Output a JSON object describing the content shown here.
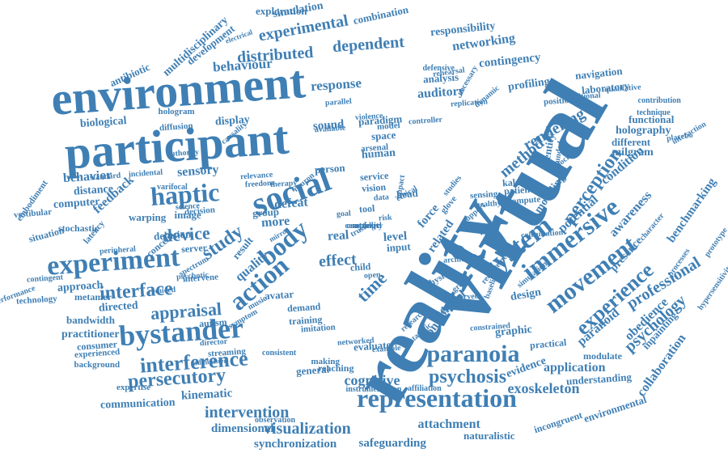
{
  "color": "#3f7fb4",
  "background": "#ffffff",
  "words": [
    {
      "t": "virtual"
    },
    {
      "t": "reality"
    },
    {
      "t": "environment"
    },
    {
      "t": "participant"
    },
    {
      "t": "social"
    },
    {
      "t": "experiment"
    },
    {
      "t": "bystander"
    },
    {
      "t": "representation"
    },
    {
      "t": "paranoia"
    },
    {
      "t": "system"
    },
    {
      "t": "immersive"
    },
    {
      "t": "movement"
    },
    {
      "t": "action"
    },
    {
      "t": "haptic"
    },
    {
      "t": "body"
    },
    {
      "t": "interference"
    },
    {
      "t": "psychosis"
    },
    {
      "t": "persecutory"
    },
    {
      "t": "experience"
    },
    {
      "t": "perception"
    },
    {
      "t": "interface"
    },
    {
      "t": "appraisal"
    },
    {
      "t": "device"
    },
    {
      "t": "study"
    },
    {
      "t": "time"
    },
    {
      "t": "intervention"
    },
    {
      "t": "visualization"
    },
    {
      "t": "psychology"
    },
    {
      "t": "professional"
    },
    {
      "t": "dependent"
    },
    {
      "t": "distributed"
    },
    {
      "t": "experimental"
    },
    {
      "t": "behaviour"
    },
    {
      "t": "response"
    },
    {
      "t": "rendering"
    },
    {
      "t": "method"
    },
    {
      "t": "cognitive"
    },
    {
      "t": "exoskeleton"
    },
    {
      "t": "dimensional"
    },
    {
      "t": "safeguarding"
    },
    {
      "t": "synchronization"
    },
    {
      "t": "kinematic"
    },
    {
      "t": "communication"
    },
    {
      "t": "attachment"
    },
    {
      "t": "application"
    },
    {
      "t": "collaboration"
    },
    {
      "t": "benchmarking"
    },
    {
      "t": "awareness"
    },
    {
      "t": "networking"
    },
    {
      "t": "contingency"
    },
    {
      "t": "responsibility"
    },
    {
      "t": "simulation"
    },
    {
      "t": "exploration"
    },
    {
      "t": "combination"
    },
    {
      "t": "multidisciplinary"
    },
    {
      "t": "development"
    },
    {
      "t": "antibiotic"
    },
    {
      "t": "biological"
    },
    {
      "t": "hologram"
    },
    {
      "t": "diffusion"
    },
    {
      "t": "display"
    },
    {
      "t": "sound"
    },
    {
      "t": "paradigm"
    },
    {
      "t": "auditory"
    },
    {
      "t": "profiling"
    },
    {
      "t": "navigation"
    },
    {
      "t": "laboratory"
    },
    {
      "t": "holography"
    },
    {
      "t": "milgram"
    },
    {
      "t": "different"
    },
    {
      "t": "functional"
    },
    {
      "t": "potential"
    },
    {
      "t": "modeling"
    },
    {
      "t": "condition"
    },
    {
      "t": "presence"
    },
    {
      "t": "obedience"
    },
    {
      "t": "paranoid"
    },
    {
      "t": "graphic"
    },
    {
      "t": "design"
    },
    {
      "t": "medical"
    },
    {
      "t": "control"
    },
    {
      "t": "evidence"
    },
    {
      "t": "understanding"
    },
    {
      "t": "environmental"
    },
    {
      "t": "naturalistic"
    },
    {
      "t": "incongruent"
    },
    {
      "t": "inpainting"
    },
    {
      "t": "modulate"
    },
    {
      "t": "practical"
    },
    {
      "t": "sensory"
    },
    {
      "t": "behavior"
    },
    {
      "t": "feedback"
    },
    {
      "t": "distance"
    },
    {
      "t": "computer"
    },
    {
      "t": "image"
    },
    {
      "t": "warping"
    },
    {
      "t": "delusion"
    },
    {
      "t": "concern"
    },
    {
      "t": "server"
    },
    {
      "t": "approach"
    },
    {
      "t": "directed"
    },
    {
      "t": "quality"
    },
    {
      "t": "more"
    },
    {
      "t": "group"
    },
    {
      "t": "defeat"
    },
    {
      "t": "person"
    },
    {
      "t": "real"
    },
    {
      "t": "effect"
    },
    {
      "t": "level"
    },
    {
      "t": "force"
    },
    {
      "t": "related"
    },
    {
      "t": "human"
    },
    {
      "t": "analysis"
    },
    {
      "t": "stochastic"
    },
    {
      "t": "situation"
    },
    {
      "t": "embodiment"
    },
    {
      "t": "vestibular"
    },
    {
      "t": "latency"
    },
    {
      "t": "technology"
    },
    {
      "t": "metamer"
    },
    {
      "t": "bandwidth"
    },
    {
      "t": "practitioner"
    },
    {
      "t": "consumer"
    },
    {
      "t": "experienced"
    },
    {
      "t": "background"
    },
    {
      "t": "expertise"
    },
    {
      "t": "streaming"
    },
    {
      "t": "autism"
    },
    {
      "t": "avatar"
    },
    {
      "t": "demand"
    },
    {
      "t": "training"
    },
    {
      "t": "imitation"
    },
    {
      "t": "evaluate"
    },
    {
      "t": "reaching"
    },
    {
      "t": "general"
    },
    {
      "t": "making"
    },
    {
      "t": "consistent"
    },
    {
      "t": "observation"
    },
    {
      "t": "instrumentation"
    },
    {
      "t": "affiliation"
    },
    {
      "t": "physic"
    },
    {
      "t": "child"
    },
    {
      "t": "open"
    },
    {
      "t": "input"
    },
    {
      "t": "result"
    },
    {
      "t": "intervene"
    },
    {
      "t": "decision"
    },
    {
      "t": "science"
    },
    {
      "t": "mirror"
    },
    {
      "t": "vision"
    },
    {
      "t": "head"
    },
    {
      "t": "glove"
    },
    {
      "t": "service"
    },
    {
      "t": "space"
    },
    {
      "t": "arsenal"
    },
    {
      "t": "model"
    },
    {
      "t": "violence"
    },
    {
      "t": "electrical"
    },
    {
      "t": "defensive"
    },
    {
      "t": "rehearsal"
    },
    {
      "t": "controller"
    },
    {
      "t": "patient"
    },
    {
      "t": "identity"
    },
    {
      "t": "compute"
    },
    {
      "t": "grounded"
    },
    {
      "t": "kalman"
    },
    {
      "t": "sensing"
    },
    {
      "t": "neuron"
    },
    {
      "t": "trust"
    },
    {
      "t": "tool"
    },
    {
      "t": "risk"
    },
    {
      "t": "data"
    },
    {
      "t": "goal"
    },
    {
      "t": "peripheral"
    },
    {
      "t": "contingent"
    },
    {
      "t": "performance"
    },
    {
      "t": "spectrum"
    },
    {
      "t": "psychotic"
    },
    {
      "t": "freedom"
    },
    {
      "t": "therapy"
    },
    {
      "t": "causality"
    },
    {
      "t": "position"
    },
    {
      "t": "qualitative"
    },
    {
      "t": "contribution"
    },
    {
      "t": "technique"
    },
    {
      "t": "processes"
    },
    {
      "t": "hypersensitivity"
    },
    {
      "t": "prototype"
    },
    {
      "t": "placebo"
    },
    {
      "t": "traditional"
    },
    {
      "t": "docking"
    },
    {
      "t": "dynamic"
    },
    {
      "t": "healthy"
    },
    {
      "t": "motion"
    },
    {
      "t": "ethical"
    },
    {
      "t": "studies"
    },
    {
      "t": "support"
    },
    {
      "t": "impact"
    },
    {
      "t": "music"
    },
    {
      "t": "symptom"
    },
    {
      "t": "director"
    },
    {
      "t": "administer"
    },
    {
      "t": "networked"
    },
    {
      "t": "example"
    },
    {
      "t": "standard"
    },
    {
      "t": "varifocal"
    },
    {
      "t": "authority"
    },
    {
      "t": "relevance"
    },
    {
      "t": "parallel"
    },
    {
      "t": "available"
    },
    {
      "t": "necessary"
    },
    {
      "t": "replication"
    },
    {
      "t": "constrained"
    },
    {
      "t": "interaction"
    },
    {
      "t": "character"
    },
    {
      "t": "consultation"
    },
    {
      "t": "simulation"
    },
    {
      "t": "requirement"
    },
    {
      "t": "baseline"
    },
    {
      "t": "architecture"
    },
    {
      "t": "statistic"
    },
    {
      "t": "research"
    },
    {
      "t": "greater"
    },
    {
      "t": "observed"
    },
    {
      "t": "incidental"
    },
    {
      "t": "reduced"
    },
    {
      "t": "setting"
    },
    {
      "t": "controlled"
    },
    {
      "t": "complexity"
    }
  ]
}
